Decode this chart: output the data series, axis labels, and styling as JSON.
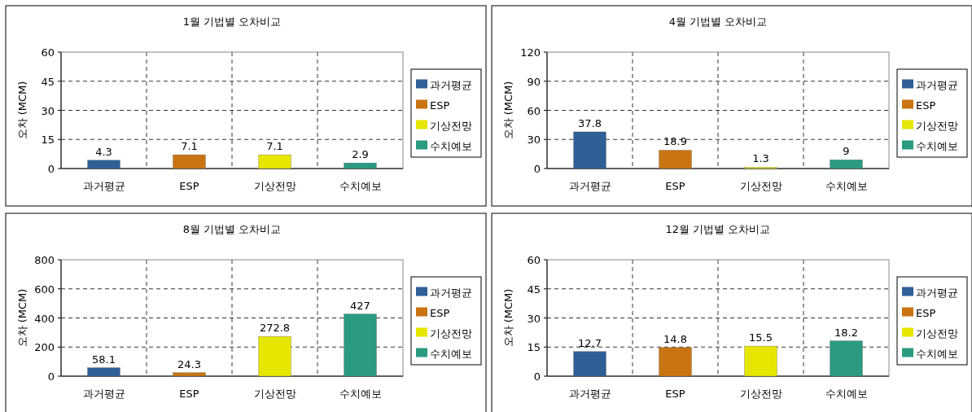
{
  "chart_data": [
    {
      "type": "bar",
      "title": "1월 기법별 오차비교",
      "ylabel": "오차 (MCM)",
      "categories": [
        "과거평균",
        "ESP",
        "기상전망",
        "수치예보"
      ],
      "series": [
        {
          "name": "과거평균",
          "color": "#2f5f96",
          "values": [
            4.3,
            null,
            null,
            null
          ]
        },
        {
          "name": "ESP",
          "color": "#c87412",
          "values": [
            null,
            7.1,
            null,
            null
          ]
        },
        {
          "name": "기상전망",
          "color": "#e6e600",
          "values": [
            null,
            null,
            7.1,
            null
          ]
        },
        {
          "name": "수치예보",
          "color": "#2a9a80",
          "values": [
            null,
            null,
            null,
            2.9
          ]
        }
      ],
      "ylim": [
        0,
        60
      ],
      "yticks": [
        0,
        15,
        30,
        45,
        60
      ],
      "grid": true,
      "legend": "right",
      "data_labels": true
    },
    {
      "type": "bar",
      "title": "4월 기법별 오차비교",
      "ylabel": "오차 (MCM)",
      "categories": [
        "과거평균",
        "ESP",
        "기상전망",
        "수치예보"
      ],
      "series": [
        {
          "name": "과거평균",
          "color": "#2f5f96",
          "values": [
            37.8,
            null,
            null,
            null
          ]
        },
        {
          "name": "ESP",
          "color": "#c87412",
          "values": [
            null,
            18.9,
            null,
            null
          ]
        },
        {
          "name": "기상전망",
          "color": "#e6e600",
          "values": [
            null,
            null,
            1.3,
            null
          ]
        },
        {
          "name": "수치예보",
          "color": "#2a9a80",
          "values": [
            null,
            null,
            null,
            9
          ]
        }
      ],
      "ylim": [
        0,
        120
      ],
      "yticks": [
        0,
        30,
        60,
        90,
        120
      ],
      "grid": true,
      "legend": "right",
      "data_labels": true
    },
    {
      "type": "bar",
      "title": "8월 기법별 오차비교",
      "ylabel": "오차 (MCM)",
      "categories": [
        "과거평균",
        "ESP",
        "기상전망",
        "수치예보"
      ],
      "series": [
        {
          "name": "과거평균",
          "color": "#2f5f96",
          "values": [
            58.1,
            null,
            null,
            null
          ]
        },
        {
          "name": "ESP",
          "color": "#c87412",
          "values": [
            null,
            24.3,
            null,
            null
          ]
        },
        {
          "name": "기상전망",
          "color": "#e6e600",
          "values": [
            null,
            null,
            272.8,
            null
          ]
        },
        {
          "name": "수치예보",
          "color": "#2a9a80",
          "values": [
            null,
            null,
            null,
            427
          ]
        }
      ],
      "ylim": [
        0,
        800
      ],
      "yticks": [
        0,
        200,
        400,
        600,
        800
      ],
      "grid": true,
      "legend": "right",
      "data_labels": true
    },
    {
      "type": "bar",
      "title": "12월 기법별 오차비교",
      "ylabel": "오차 (MCM)",
      "categories": [
        "과거평균",
        "ESP",
        "기상전망",
        "수치예보"
      ],
      "series": [
        {
          "name": "과거평균",
          "color": "#2f5f96",
          "values": [
            12.7,
            null,
            null,
            null
          ]
        },
        {
          "name": "ESP",
          "color": "#c87412",
          "values": [
            null,
            14.8,
            null,
            null
          ]
        },
        {
          "name": "기상전망",
          "color": "#e6e600",
          "values": [
            null,
            null,
            15.5,
            null
          ]
        },
        {
          "name": "수치예보",
          "color": "#2a9a80",
          "values": [
            null,
            null,
            null,
            18.2
          ]
        }
      ],
      "ylim": [
        0,
        60
      ],
      "yticks": [
        0,
        15,
        30,
        45,
        60
      ],
      "grid": true,
      "legend": "right",
      "data_labels": true
    }
  ]
}
